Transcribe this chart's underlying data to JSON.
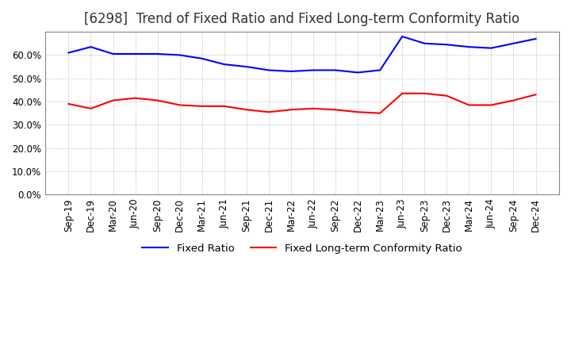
{
  "title": "[6298]  Trend of Fixed Ratio and Fixed Long-term Conformity Ratio",
  "x_labels": [
    "Sep-19",
    "Dec-19",
    "Mar-20",
    "Jun-20",
    "Sep-20",
    "Dec-20",
    "Mar-21",
    "Jun-21",
    "Sep-21",
    "Dec-21",
    "Mar-22",
    "Jun-22",
    "Sep-22",
    "Dec-22",
    "Mar-23",
    "Jun-23",
    "Sep-23",
    "Dec-23",
    "Mar-24",
    "Jun-24",
    "Sep-24",
    "Dec-24"
  ],
  "fixed_ratio": [
    61.0,
    63.5,
    60.5,
    60.5,
    60.5,
    60.0,
    58.5,
    56.0,
    55.0,
    53.5,
    53.0,
    53.5,
    53.5,
    52.5,
    53.5,
    68.0,
    65.0,
    64.5,
    63.5,
    63.0,
    65.0,
    67.0
  ],
  "fixed_lt_ratio": [
    39.0,
    37.0,
    40.5,
    41.5,
    40.5,
    38.5,
    38.0,
    38.0,
    36.5,
    35.5,
    36.5,
    37.0,
    36.5,
    35.5,
    35.0,
    43.5,
    43.5,
    42.5,
    38.5,
    38.5,
    40.5,
    43.0
  ],
  "fixed_ratio_color": "#0000ff",
  "fixed_lt_ratio_color": "#ff0000",
  "ylim": [
    0,
    70
  ],
  "yticks": [
    0,
    10,
    20,
    30,
    40,
    50,
    60
  ],
  "background_color": "#ffffff",
  "grid_color": "#aaaaaa",
  "title_fontsize": 12,
  "tick_fontsize": 8.5,
  "legend_fontsize": 9.5
}
